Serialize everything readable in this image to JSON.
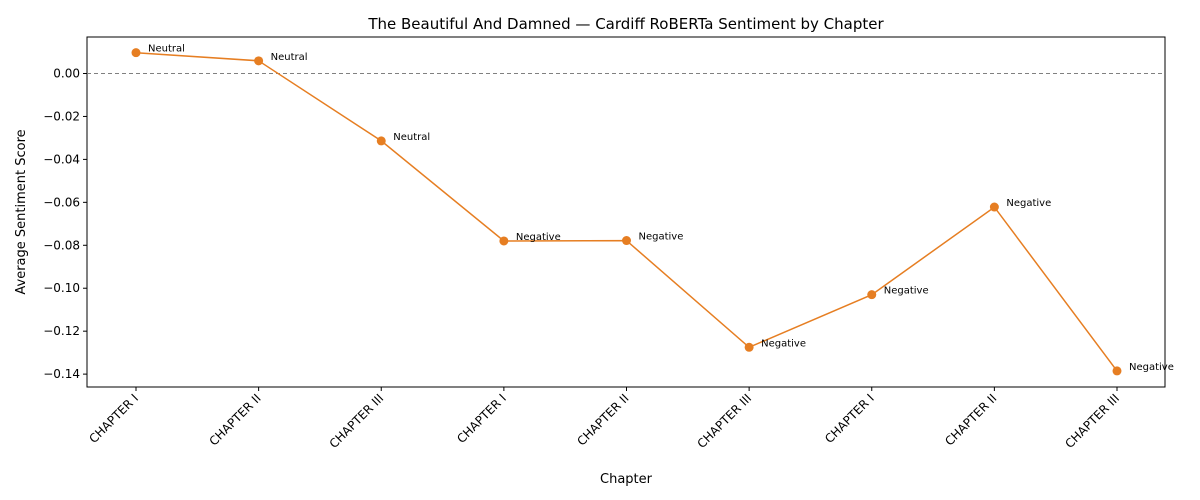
{
  "chart_data": {
    "type": "line",
    "title": "The Beautiful And Damned — Cardiff RoBERTa Sentiment by Chapter",
    "xlabel": "Chapter",
    "ylabel": "Average Sentiment Score",
    "categories": [
      "CHAPTER I",
      "CHAPTER II",
      "CHAPTER III",
      "CHAPTER I",
      "CHAPTER II",
      "CHAPTER III",
      "CHAPTER I",
      "CHAPTER II",
      "CHAPTER III"
    ],
    "values": [
      0.0097,
      0.0059,
      -0.0314,
      -0.078,
      -0.0778,
      -0.1275,
      -0.103,
      -0.0622,
      -0.1385
    ],
    "point_labels": [
      "Neutral",
      "Neutral",
      "Neutral",
      "Negative",
      "Negative",
      "Negative",
      "Negative",
      "Negative",
      "Negative"
    ],
    "yticks": [
      0.0,
      -0.02,
      -0.04,
      -0.06,
      -0.08,
      -0.1,
      -0.12,
      -0.14
    ],
    "ytick_labels": [
      "0.00",
      "−0.02",
      "−0.04",
      "−0.06",
      "−0.08",
      "−0.10",
      "−0.12",
      "−0.14"
    ],
    "ylim": [
      -0.146,
      0.017
    ],
    "reference_line": 0.0,
    "grid": false,
    "line_color": "#e67e22",
    "reference_color": "#808080"
  }
}
